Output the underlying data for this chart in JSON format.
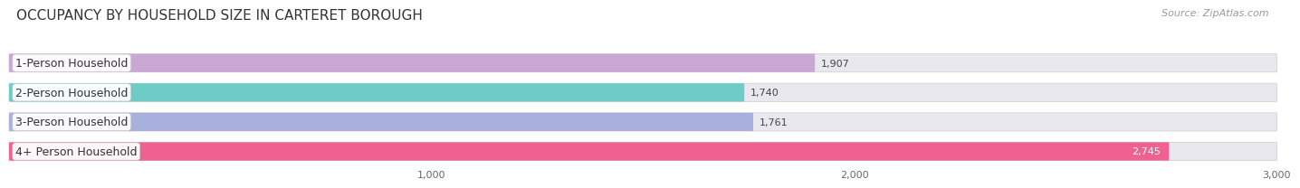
{
  "title": "OCCUPANCY BY HOUSEHOLD SIZE IN CARTERET BOROUGH",
  "source": "Source: ZipAtlas.com",
  "categories": [
    "1-Person Household",
    "2-Person Household",
    "3-Person Household",
    "4+ Person Household"
  ],
  "values": [
    1907,
    1740,
    1761,
    2745
  ],
  "bar_colors": [
    "#c9a8d4",
    "#6eccc8",
    "#a8b0de",
    "#f06090"
  ],
  "bar_bg_color": "#e8e8ee",
  "bg_color": "#ffffff",
  "xlim": [
    0,
    3000
  ],
  "xticks": [
    1000,
    2000,
    3000
  ],
  "xtick_labels": [
    "1,000",
    "2,000",
    "3,000"
  ],
  "title_fontsize": 11,
  "source_fontsize": 8,
  "bar_label_fontsize": 8,
  "category_fontsize": 9,
  "tick_fontsize": 8
}
